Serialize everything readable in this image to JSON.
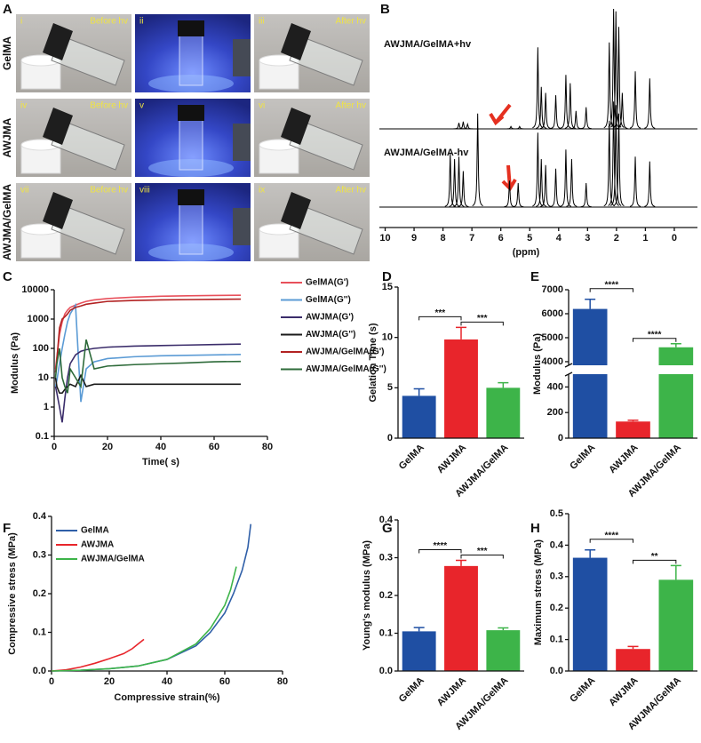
{
  "photo_grid": {
    "panel": "A",
    "rows": [
      "GelMA",
      "AWJMA",
      "AWJMA/GelMA"
    ],
    "cells": [
      {
        "label": "i",
        "caption": "Before hv"
      },
      {
        "label": "ii"
      },
      {
        "label": "iii",
        "caption": "After hv"
      },
      {
        "label": "iv",
        "caption": "Before hv"
      },
      {
        "label": "v"
      },
      {
        "label": "vi",
        "caption": "After hv"
      },
      {
        "label": "vii",
        "caption": "Before hv"
      },
      {
        "label": "viii"
      },
      {
        "label": "ix",
        "caption": "After hv"
      }
    ]
  },
  "chart_data": [
    {
      "panel": "B",
      "type": "spectrum",
      "xlim": [
        10.2,
        -0.8
      ],
      "xticks": [
        10,
        9,
        8,
        7,
        6,
        5,
        4,
        3,
        2,
        1,
        0
      ],
      "xlabel": "(ppm)",
      "series": [
        {
          "name": "AWJMA/GelMA+hv",
          "color": "#000000",
          "peaks": {
            "ppm": [
              7.45,
              7.3,
              7.15,
              5.65,
              5.35,
              4.72,
              4.6,
              4.45,
              4.1,
              3.75,
              3.6,
              3.4,
              3.05,
              2.25,
              2.1,
              2.02,
              1.92,
              1.8,
              1.35,
              0.85
            ],
            "intensity": [
              5,
              6,
              4,
              2,
              2,
              68,
              35,
              30,
              28,
              45,
              38,
              15,
              18,
              72,
              100,
              98,
              85,
              30,
              48,
              42
            ]
          }
        },
        {
          "name": "AWJMA/GelMA-hv",
          "color": "#000000",
          "peaks": {
            "ppm": [
              7.75,
              7.6,
              7.45,
              7.3,
              6.8,
              5.7,
              5.4,
              4.72,
              4.6,
              4.45,
              4.1,
              3.75,
              3.55,
              3.05,
              2.25,
              2.1,
              2.02,
              1.92,
              1.35,
              0.85
            ],
            "intensity": [
              45,
              40,
              42,
              30,
              78,
              22,
              20,
              62,
              40,
              35,
              32,
              48,
              40,
              20,
              72,
              88,
              85,
              78,
              42,
              38
            ]
          }
        }
      ]
    },
    {
      "panel": "C",
      "type": "line",
      "log_y": true,
      "xlabel": "Time( s)",
      "ylabel": "Modulus (Pa)",
      "x": [
        0.5,
        1,
        2,
        3,
        4,
        5,
        6,
        8,
        10,
        12,
        15,
        20,
        30,
        40,
        50,
        60,
        70
      ],
      "xlim": [
        0,
        80
      ],
      "xticks": [
        0,
        20,
        40,
        60,
        80
      ],
      "ylim": [
        0.1,
        10000
      ],
      "yticks": [
        0.1,
        1,
        10,
        100,
        1000,
        10000
      ],
      "legend": "right",
      "series": [
        {
          "name": "GelMA(G')",
          "color": "#e8505b",
          "values": [
            20,
            50,
            300,
            800,
            1500,
            2000,
            2500,
            3000,
            3500,
            4000,
            4500,
            5000,
            5600,
            6000,
            6200,
            6400,
            6500
          ]
        },
        {
          "name": "GelMA(G'')",
          "color": "#5b9bd5",
          "values": [
            5,
            8,
            30,
            100,
            300,
            800,
            1500,
            3000,
            1.5,
            20,
            35,
            45,
            52,
            56,
            58,
            60,
            62
          ]
        },
        {
          "name": "AWJMA(G')",
          "color": "#3b2d6b",
          "values": [
            5,
            3,
            1,
            0.3,
            2,
            10,
            30,
            60,
            80,
            90,
            100,
            110,
            120,
            125,
            130,
            135,
            140
          ]
        },
        {
          "name": "AWJMA(G'')",
          "color": "#1a1a1a",
          "values": [
            10,
            5,
            3,
            3,
            4,
            5,
            6,
            5,
            12,
            5,
            6,
            6,
            6,
            6,
            6,
            6,
            6
          ]
        },
        {
          "name": "AWJMA/GelMA(G')",
          "color": "#b22222",
          "values": [
            15,
            40,
            500,
            1000,
            1200,
            1500,
            2000,
            2500,
            2800,
            3200,
            3500,
            4000,
            4300,
            4500,
            4600,
            4700,
            4800
          ]
        },
        {
          "name": "AWJMA/GelMA(G'')",
          "color": "#2e6b3a",
          "values": [
            10,
            30,
            100,
            10,
            5,
            3,
            20,
            10,
            5,
            200,
            20,
            25,
            28,
            30,
            32,
            35,
            36
          ]
        }
      ]
    },
    {
      "panel": "D",
      "type": "bar",
      "ylabel": "Gelation Time (s)",
      "categories": [
        "GelMA",
        "AWJMA",
        "AWJMA/GelMA"
      ],
      "values": [
        4.2,
        9.8,
        5.0
      ],
      "errors": [
        0.7,
        1.2,
        0.5
      ],
      "colors": [
        "#1f4fa3",
        "#e8252b",
        "#3db449"
      ],
      "ylim": [
        0,
        15
      ],
      "yticks": [
        0,
        5,
        10,
        15
      ],
      "annotations": [
        "***",
        "***"
      ]
    },
    {
      "panel": "E",
      "type": "bar",
      "ylabel": "Modulus (Pa)",
      "categories": [
        "GelMA",
        "AWJMA",
        "AWJMA/GelMA"
      ],
      "values": [
        6200,
        130,
        4600
      ],
      "errors": [
        400,
        10,
        150
      ],
      "colors": [
        "#1f4fa3",
        "#e8252b",
        "#3db449"
      ],
      "ylim": [
        0,
        7000
      ],
      "ybreak": [
        500,
        3850
      ],
      "yticks": [
        0,
        200,
        400,
        4000,
        5000,
        6000,
        7000
      ],
      "annotations": [
        "****",
        "****"
      ]
    },
    {
      "panel": "F",
      "type": "line",
      "xlabel": "Compressive strain(%)",
      "ylabel": "Compressive stress (MPa)",
      "xlim": [
        0,
        80
      ],
      "xticks": [
        0,
        20,
        40,
        60,
        80
      ],
      "ylim": [
        0,
        0.4
      ],
      "yticks": [
        {
          "value": 0,
          "label": "0.0"
        },
        0.1,
        0.2,
        0.3,
        0.4
      ],
      "legend": "upper left",
      "series": [
        {
          "name": "GelMA",
          "color": "#2f5fa8",
          "x": [
            0,
            10,
            20,
            30,
            40,
            50,
            55,
            60,
            63,
            66,
            68,
            69
          ],
          "values": [
            0,
            0.002,
            0.006,
            0.013,
            0.03,
            0.065,
            0.1,
            0.15,
            0.2,
            0.26,
            0.32,
            0.38
          ]
        },
        {
          "name": "AWJMA",
          "color": "#e8252b",
          "x": [
            0,
            5,
            10,
            15,
            20,
            25,
            28,
            30,
            32
          ],
          "values": [
            0,
            0.003,
            0.01,
            0.02,
            0.032,
            0.045,
            0.058,
            0.07,
            0.082
          ]
        },
        {
          "name": "AWJMA/GelMA",
          "color": "#3db449",
          "x": [
            0,
            10,
            20,
            30,
            40,
            50,
            55,
            60,
            62,
            64
          ],
          "values": [
            0,
            0.002,
            0.006,
            0.013,
            0.03,
            0.07,
            0.11,
            0.17,
            0.21,
            0.27
          ]
        }
      ]
    },
    {
      "panel": "G",
      "type": "bar",
      "ylabel": "Young's  modulus (MPa)",
      "categories": [
        "GelMA",
        "AWJMA",
        "AWJMA/GelMA"
      ],
      "values": [
        0.105,
        0.278,
        0.108
      ],
      "errors": [
        0.01,
        0.015,
        0.006
      ],
      "colors": [
        "#1f4fa3",
        "#e8252b",
        "#3db449"
      ],
      "ylim": [
        0,
        0.4
      ],
      "yticks": [
        {
          "value": 0,
          "label": "0.0"
        },
        0.1,
        0.2,
        0.3,
        0.4
      ],
      "annotations": [
        "****",
        "***"
      ]
    },
    {
      "panel": "H",
      "type": "bar",
      "ylabel": "Maximum stress (MPa)",
      "categories": [
        "GelMA",
        "AWJMA",
        "AWJMA/GelMA"
      ],
      "values": [
        0.36,
        0.07,
        0.29
      ],
      "errors": [
        0.025,
        0.008,
        0.045
      ],
      "colors": [
        "#1f4fa3",
        "#e8252b",
        "#3db449"
      ],
      "ylim": [
        0,
        0.5
      ],
      "yticks": [
        {
          "value": 0,
          "label": "0.0"
        },
        0.1,
        0.2,
        0.3,
        0.4,
        0.5
      ],
      "annotations": [
        "****",
        "**"
      ]
    }
  ]
}
